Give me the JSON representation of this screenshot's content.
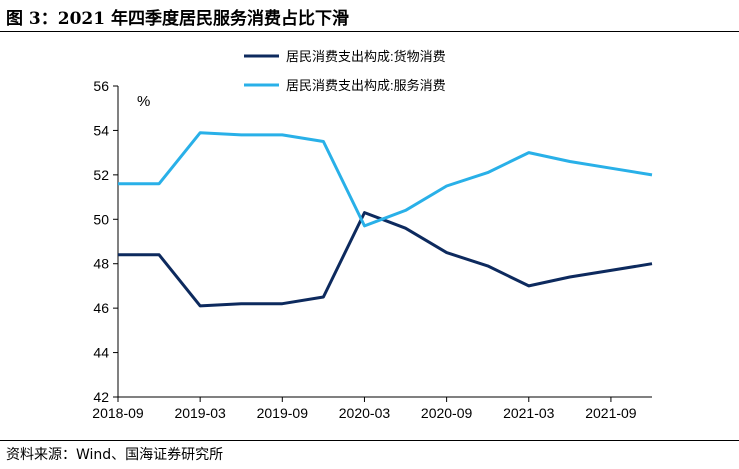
{
  "figure": {
    "title": "图 3：2021 年四季度居民服务消费占比下滑",
    "source": "资料来源：Wind、国海证券研究所"
  },
  "chart_data": {
    "type": "line",
    "unit_label": "%",
    "ylim": [
      42,
      56
    ],
    "yticks": [
      42,
      44,
      46,
      48,
      50,
      52,
      54,
      56
    ],
    "xlim": [
      0,
      39
    ],
    "xticks": [
      {
        "label": "2018-09",
        "pos": 0
      },
      {
        "label": "2019-03",
        "pos": 6
      },
      {
        "label": "2019-09",
        "pos": 12
      },
      {
        "label": "2020-03",
        "pos": 18
      },
      {
        "label": "2020-09",
        "pos": 24
      },
      {
        "label": "2021-03",
        "pos": 30
      },
      {
        "label": "2021-09",
        "pos": 36
      }
    ],
    "grid": false,
    "legend_position": "top-right",
    "series": [
      {
        "name": "居民消费支出构成:货物消费",
        "color": "#0d2a5e",
        "points": [
          {
            "x": 0,
            "y": 48.4
          },
          {
            "x": 3,
            "y": 48.4
          },
          {
            "x": 6,
            "y": 46.1
          },
          {
            "x": 9,
            "y": 46.2
          },
          {
            "x": 12,
            "y": 46.2
          },
          {
            "x": 15,
            "y": 46.5
          },
          {
            "x": 18,
            "y": 50.3
          },
          {
            "x": 21,
            "y": 49.6
          },
          {
            "x": 24,
            "y": 48.5
          },
          {
            "x": 27,
            "y": 47.9
          },
          {
            "x": 30,
            "y": 47.0
          },
          {
            "x": 33,
            "y": 47.4
          },
          {
            "x": 36,
            "y": 47.7
          },
          {
            "x": 39,
            "y": 48.0
          }
        ]
      },
      {
        "name": "居民消费支出构成:服务消费",
        "color": "#29b0e8",
        "points": [
          {
            "x": 0,
            "y": 51.6
          },
          {
            "x": 3,
            "y": 51.6
          },
          {
            "x": 6,
            "y": 53.9
          },
          {
            "x": 9,
            "y": 53.8
          },
          {
            "x": 12,
            "y": 53.8
          },
          {
            "x": 15,
            "y": 53.5
          },
          {
            "x": 18,
            "y": 49.7
          },
          {
            "x": 21,
            "y": 50.4
          },
          {
            "x": 24,
            "y": 51.5
          },
          {
            "x": 27,
            "y": 52.1
          },
          {
            "x": 30,
            "y": 53.0
          },
          {
            "x": 33,
            "y": 52.6
          },
          {
            "x": 36,
            "y": 52.3
          },
          {
            "x": 39,
            "y": 52.0
          }
        ]
      }
    ]
  }
}
